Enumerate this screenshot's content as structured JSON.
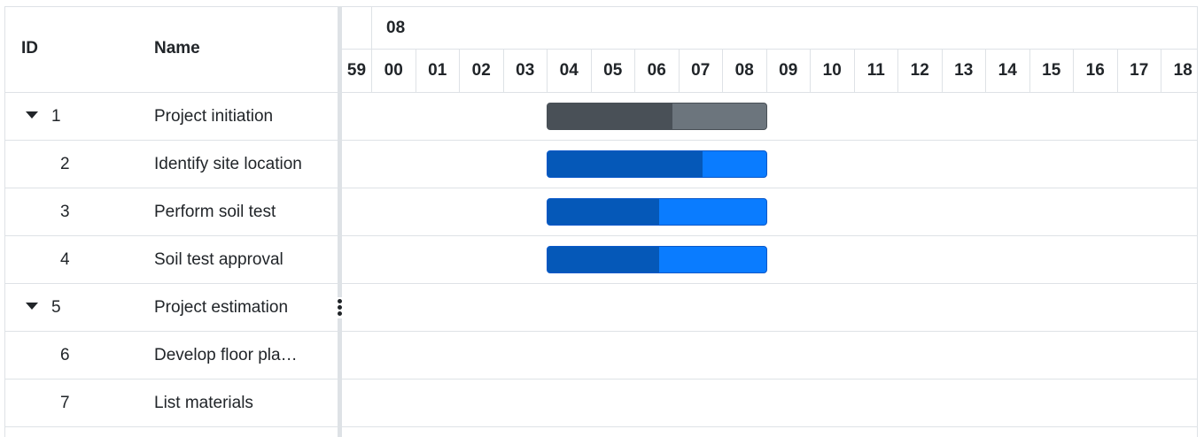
{
  "grid": {
    "columns": {
      "id": "ID",
      "name": "Name"
    },
    "rows": [
      {
        "id": "1",
        "name": "Project initiation",
        "expandable": true
      },
      {
        "id": "2",
        "name": "Identify site location",
        "expandable": false
      },
      {
        "id": "3",
        "name": "Perform soil test",
        "expandable": false
      },
      {
        "id": "4",
        "name": "Soil test approval",
        "expandable": false
      },
      {
        "id": "5",
        "name": "Project estimation",
        "expandable": true
      },
      {
        "id": "6",
        "name": "Develop floor pla…",
        "expandable": false
      },
      {
        "id": "7",
        "name": "List materials",
        "expandable": false
      }
    ]
  },
  "timeline": {
    "top_tier_label": "08",
    "hours": [
      "59",
      "00",
      "01",
      "02",
      "03",
      "04",
      "05",
      "06",
      "07",
      "08",
      "09",
      "10",
      "11",
      "12",
      "13",
      "14",
      "15",
      "16",
      "17",
      "18"
    ]
  },
  "tasks": [
    {
      "row": 0,
      "type": "summary",
      "start_hour": "04",
      "end_hour": "08",
      "progress": 0.57
    },
    {
      "row": 1,
      "type": "task",
      "start_hour": "04",
      "end_hour": "08",
      "progress": 0.71
    },
    {
      "row": 2,
      "type": "task",
      "start_hour": "04",
      "end_hour": "08",
      "progress": 0.51
    },
    {
      "row": 3,
      "type": "task",
      "start_hour": "04",
      "end_hour": "08",
      "progress": 0.51
    }
  ],
  "colors": {
    "summary_bar": "#6c757d",
    "summary_progress": "#495057",
    "task_bar": "#0a7cff",
    "task_progress": "#0558b8",
    "border": "#dee2e6"
  },
  "icons": {
    "expand": "caret-down-icon",
    "splitter": "vertical-dots-icon"
  }
}
